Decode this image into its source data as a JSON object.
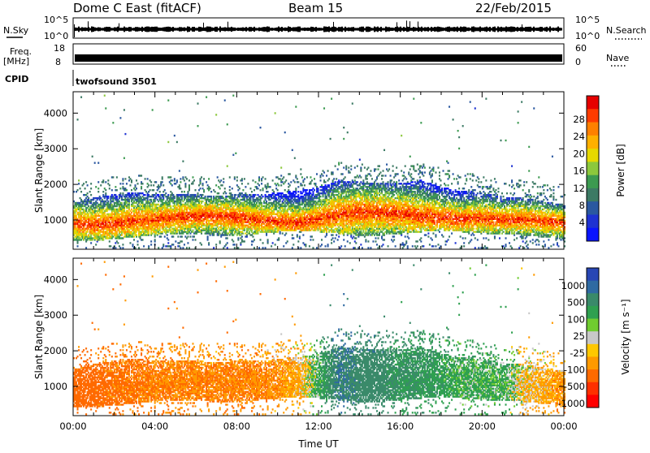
{
  "header": {
    "station": "Dome C East (fitACF)",
    "beam": "Beam 15",
    "date": "22/Feb/2015"
  },
  "status_panels": {
    "nsky_label": "N.Sky",
    "nsky_ticks": [
      "10^5",
      "10^0"
    ],
    "nsearch_label": "N.Search",
    "nsearch_ticks": [
      "10^5",
      "10^0"
    ],
    "freq_label": "Freq.",
    "freq_unit": "[MHz]",
    "freq_ticks": [
      "18",
      "8"
    ],
    "nave_label": "Nave",
    "nave_ticks": [
      "60",
      "0"
    ],
    "cpid_label": "CPID",
    "cpid_value": "twofsound 3501"
  },
  "chart_data": [
    {
      "type": "heatmap",
      "name": "power",
      "x_range": [
        0,
        24
      ],
      "y_range": [
        180,
        4600
      ],
      "ylabel": "Slant Range [km]",
      "y_ticks": [
        1000,
        2000,
        3000,
        4000
      ],
      "colorbar_label": "Power [dB]",
      "colorbar_ticks": [
        "28",
        "24",
        "20",
        "16",
        "12",
        "8",
        "4"
      ],
      "colorbar_colors": [
        "#e60000",
        "#ff3b00",
        "#ff8000",
        "#ffb000",
        "#e6d800",
        "#8cc83c",
        "#3c9a50",
        "#3c7a64",
        "#2a58a0",
        "#1e32d2",
        "#0a14ff"
      ],
      "echo_profile": {
        "times": [
          0,
          1,
          2,
          3,
          4,
          5,
          6,
          7,
          8,
          9,
          10,
          11,
          12,
          13,
          14,
          15,
          16,
          17,
          18,
          19,
          20,
          21,
          22,
          23,
          24
        ],
        "core_km": [
          900,
          850,
          900,
          950,
          1000,
          1050,
          1100,
          1100,
          1050,
          1000,
          950,
          900,
          1000,
          1150,
          1200,
          1200,
          1150,
          1100,
          1050,
          1000,
          1050,
          1000,
          1000,
          950,
          900
        ],
        "top_km": [
          1500,
          1600,
          1700,
          1750,
          1700,
          1700,
          1700,
          1650,
          1700,
          1700,
          1750,
          1800,
          1900,
          2100,
          2050,
          2000,
          2000,
          2100,
          1900,
          1800,
          1750,
          1600,
          1600,
          1500,
          1400
        ],
        "bottom_km": [
          400,
          400,
          450,
          500,
          550,
          600,
          600,
          550,
          550,
          600,
          650,
          700,
          650,
          600,
          550,
          550,
          600,
          650,
          700,
          650,
          600,
          600,
          550,
          500,
          450
        ]
      }
    },
    {
      "type": "heatmap",
      "name": "velocity",
      "x_range": [
        0,
        24
      ],
      "y_range": [
        180,
        4600
      ],
      "xlabel": "Time UT",
      "ylabel": "Slant Range [km]",
      "x_ticks": [
        "00:00",
        "04:00",
        "08:00",
        "12:00",
        "16:00",
        "20:00",
        "00:00"
      ],
      "y_ticks": [
        1000,
        2000,
        3000,
        4000
      ],
      "colorbar_label": "Velocity [m s⁻¹]",
      "colorbar_ticks": [
        "1000",
        "500",
        "100",
        "25",
        "-25",
        "-100",
        "-500",
        "-1000"
      ],
      "colorbar_colors": [
        "#2846b4",
        "#2f6aa2",
        "#3a8a6a",
        "#2fa050",
        "#70cc30",
        "#c8c8c8",
        "#ffc800",
        "#ff9a00",
        "#ff6a00",
        "#ff3000",
        "#ff0000"
      ],
      "velocity_by_hour": [
        -300,
        -300,
        -250,
        -250,
        -200,
        -200,
        -200,
        -200,
        -200,
        -200,
        -150,
        -100,
        100,
        400,
        300,
        300,
        200,
        200,
        150,
        100,
        100,
        100,
        -50,
        -100,
        -150
      ]
    }
  ]
}
